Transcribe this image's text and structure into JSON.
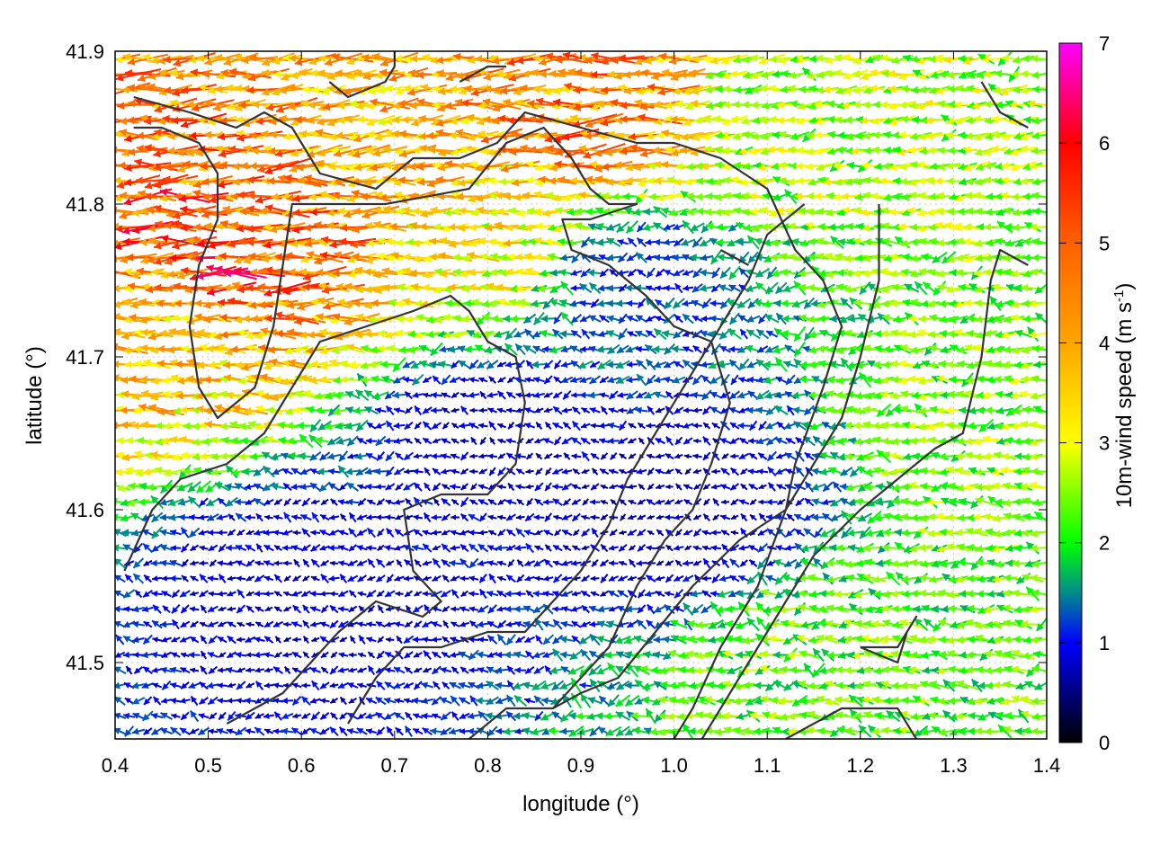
{
  "chart_data": {
    "type": "vector-field",
    "xlabel": "longitude (°)",
    "ylabel": "latitude (°)",
    "xlim": [
      0.4,
      1.4
    ],
    "ylim": [
      41.45,
      41.9
    ],
    "xticks": [
      "0.4",
      "0.5",
      "0.6",
      "0.7",
      "0.8",
      "0.9",
      "1.0",
      "1.1",
      "1.2",
      "1.3",
      "1.4"
    ],
    "yticks": [
      "41.5",
      "41.6",
      "41.7",
      "41.8",
      "41.9"
    ],
    "grid": true,
    "colorbar": {
      "label": "10m-wind speed (m s",
      "label_sup": "-1",
      "label_close": ")",
      "range": [
        0,
        7
      ],
      "ticks": [
        "0",
        "1",
        "2",
        "3",
        "4",
        "5",
        "6",
        "7"
      ],
      "stops": [
        {
          "value": 0,
          "color": "#000000"
        },
        {
          "value": 1,
          "color": "#0000ff"
        },
        {
          "value": 1.5,
          "color": "#008c8c"
        },
        {
          "value": 2,
          "color": "#00ff00"
        },
        {
          "value": 3,
          "color": "#ffff00"
        },
        {
          "value": 4,
          "color": "#ffa500"
        },
        {
          "value": 5,
          "color": "#ff6000"
        },
        {
          "value": 6,
          "color": "#ff0000"
        },
        {
          "value": 7,
          "color": "#ff00ff"
        }
      ]
    },
    "grid_spacing_deg": 0.01,
    "dominant_direction": "westward (east wind)",
    "speed_regions": [
      {
        "lon": 0.5,
        "lat": 41.77,
        "speed": 5.2
      },
      {
        "lon": 0.6,
        "lat": 41.79,
        "speed": 4.6
      },
      {
        "lon": 0.9,
        "lat": 41.86,
        "speed": 4.5
      },
      {
        "lon": 0.45,
        "lat": 41.72,
        "speed": 3.6
      },
      {
        "lon": 0.7,
        "lat": 41.82,
        "speed": 3.8
      },
      {
        "lon": 0.8,
        "lat": 41.78,
        "speed": 3.2
      },
      {
        "lon": 1.15,
        "lat": 41.85,
        "speed": 2.6
      },
      {
        "lon": 1.35,
        "lat": 41.65,
        "speed": 2.4
      },
      {
        "lon": 1.15,
        "lat": 41.5,
        "speed": 2.3
      },
      {
        "lon": 0.8,
        "lat": 41.65,
        "speed": 0.8
      },
      {
        "lon": 0.6,
        "lat": 41.55,
        "speed": 0.8
      },
      {
        "lon": 1.0,
        "lat": 41.6,
        "speed": 0.7
      },
      {
        "lon": 0.95,
        "lat": 41.75,
        "speed": 1.2
      }
    ],
    "contours": [
      [
        [
          0.42,
          41.87
        ],
        [
          0.48,
          41.86
        ],
        [
          0.53,
          41.85
        ],
        [
          0.56,
          41.86
        ],
        [
          0.59,
          41.85
        ],
        [
          0.62,
          41.82
        ],
        [
          0.68,
          41.81
        ],
        [
          0.72,
          41.83
        ],
        [
          0.77,
          41.83
        ],
        [
          0.81,
          41.84
        ],
        [
          0.84,
          41.86
        ],
        [
          0.9,
          41.85
        ],
        [
          0.96,
          41.84
        ],
        [
          1.0,
          41.84
        ],
        [
          1.05,
          41.83
        ],
        [
          1.1,
          41.81
        ],
        [
          1.13,
          41.77
        ],
        [
          1.16,
          41.75
        ],
        [
          1.18,
          41.72
        ],
        [
          1.16,
          41.68
        ],
        [
          1.13,
          41.63
        ],
        [
          1.12,
          41.6
        ],
        [
          1.09,
          41.55
        ],
        [
          1.05,
          41.51
        ],
        [
          1.02,
          41.47
        ],
        [
          1.0,
          41.45
        ]
      ],
      [
        [
          0.42,
          41.85
        ],
        [
          0.45,
          41.85
        ],
        [
          0.49,
          41.84
        ],
        [
          0.51,
          41.82
        ],
        [
          0.51,
          41.79
        ],
        [
          0.49,
          41.76
        ],
        [
          0.48,
          41.72
        ],
        [
          0.49,
          41.68
        ],
        [
          0.51,
          41.66
        ],
        [
          0.55,
          41.68
        ],
        [
          0.57,
          41.72
        ],
        [
          0.58,
          41.76
        ],
        [
          0.59,
          41.8
        ],
        [
          0.63,
          41.8
        ],
        [
          0.69,
          41.8
        ],
        [
          0.78,
          41.81
        ],
        [
          0.82,
          41.84
        ],
        [
          0.86,
          41.85
        ],
        [
          0.89,
          41.83
        ],
        [
          0.91,
          41.81
        ],
        [
          0.93,
          41.8
        ],
        [
          0.96,
          41.8
        ],
        [
          0.91,
          41.79
        ],
        [
          0.88,
          41.79
        ],
        [
          0.89,
          41.77
        ],
        [
          0.93,
          41.76
        ],
        [
          0.97,
          41.74
        ],
        [
          1.0,
          41.72
        ],
        [
          1.04,
          41.71
        ],
        [
          1.06,
          41.67
        ],
        [
          1.04,
          41.63
        ],
        [
          1.02,
          41.6
        ],
        [
          0.99,
          41.58
        ],
        [
          0.96,
          41.55
        ],
        [
          0.93,
          41.51
        ],
        [
          0.9,
          41.49
        ],
        [
          0.87,
          41.47
        ]
      ],
      [
        [
          0.41,
          41.56
        ],
        [
          0.44,
          41.6
        ],
        [
          0.47,
          41.62
        ],
        [
          0.52,
          41.63
        ],
        [
          0.56,
          41.65
        ],
        [
          0.59,
          41.68
        ],
        [
          0.62,
          41.71
        ],
        [
          0.67,
          41.72
        ],
        [
          0.72,
          41.73
        ],
        [
          0.76,
          41.74
        ],
        [
          0.78,
          41.73
        ],
        [
          0.8,
          41.71
        ],
        [
          0.83,
          41.7
        ],
        [
          0.84,
          41.67
        ],
        [
          0.83,
          41.63
        ],
        [
          0.8,
          41.61
        ],
        [
          0.75,
          41.61
        ],
        [
          0.71,
          41.6
        ],
        [
          0.72,
          41.56
        ],
        [
          0.75,
          41.54
        ],
        [
          0.73,
          41.53
        ],
        [
          0.68,
          41.54
        ],
        [
          0.64,
          41.52
        ],
        [
          0.61,
          41.5
        ],
        [
          0.58,
          41.48
        ],
        [
          0.55,
          41.47
        ],
        [
          0.52,
          41.46
        ]
      ],
      [
        [
          0.65,
          41.46
        ],
        [
          0.68,
          41.49
        ],
        [
          0.71,
          41.51
        ],
        [
          0.75,
          41.51
        ],
        [
          0.8,
          41.52
        ],
        [
          0.84,
          41.52
        ],
        [
          0.87,
          41.54
        ],
        [
          0.9,
          41.56
        ],
        [
          0.93,
          41.59
        ],
        [
          0.95,
          41.62
        ],
        [
          0.98,
          41.65
        ],
        [
          1.02,
          41.69
        ],
        [
          1.05,
          41.72
        ],
        [
          1.08,
          41.75
        ],
        [
          1.1,
          41.78
        ],
        [
          1.12,
          41.79
        ],
        [
          1.14,
          41.8
        ]
      ],
      [
        [
          0.78,
          41.45
        ],
        [
          0.82,
          41.47
        ],
        [
          0.87,
          41.47
        ],
        [
          0.9,
          41.48
        ],
        [
          0.94,
          41.49
        ],
        [
          0.98,
          41.52
        ],
        [
          1.02,
          41.55
        ],
        [
          1.07,
          41.58
        ],
        [
          1.12,
          41.6
        ],
        [
          1.15,
          41.63
        ],
        [
          1.18,
          41.66
        ],
        [
          1.2,
          41.7
        ],
        [
          1.22,
          41.75
        ],
        [
          1.22,
          41.8
        ]
      ],
      [
        [
          1.03,
          41.45
        ],
        [
          1.06,
          41.48
        ],
        [
          1.1,
          41.52
        ],
        [
          1.15,
          41.57
        ],
        [
          1.2,
          41.6
        ],
        [
          1.24,
          41.62
        ],
        [
          1.28,
          41.64
        ],
        [
          1.31,
          41.65
        ],
        [
          1.33,
          41.7
        ],
        [
          1.34,
          41.75
        ],
        [
          1.35,
          41.77
        ],
        [
          1.38,
          41.76
        ]
      ],
      [
        [
          1.12,
          41.45
        ],
        [
          1.18,
          41.47
        ],
        [
          1.24,
          41.47
        ],
        [
          1.26,
          41.45
        ]
      ],
      [
        [
          1.2,
          41.51
        ],
        [
          1.24,
          41.51
        ],
        [
          1.26,
          41.53
        ],
        [
          1.25,
          41.52
        ],
        [
          1.24,
          41.5
        ],
        [
          1.2,
          41.51
        ]
      ],
      [
        [
          0.63,
          41.88
        ],
        [
          0.65,
          41.87
        ],
        [
          0.69,
          41.88
        ],
        [
          0.7,
          41.89
        ],
        [
          0.7,
          41.9
        ]
      ],
      [
        [
          1.33,
          41.88
        ],
        [
          1.35,
          41.86
        ],
        [
          1.38,
          41.85
        ]
      ],
      [
        [
          1.05,
          41.77
        ],
        [
          1.08,
          41.76
        ]
      ],
      [
        [
          0.77,
          41.88
        ],
        [
          0.8,
          41.89
        ],
        [
          0.82,
          41.89
        ]
      ]
    ]
  }
}
